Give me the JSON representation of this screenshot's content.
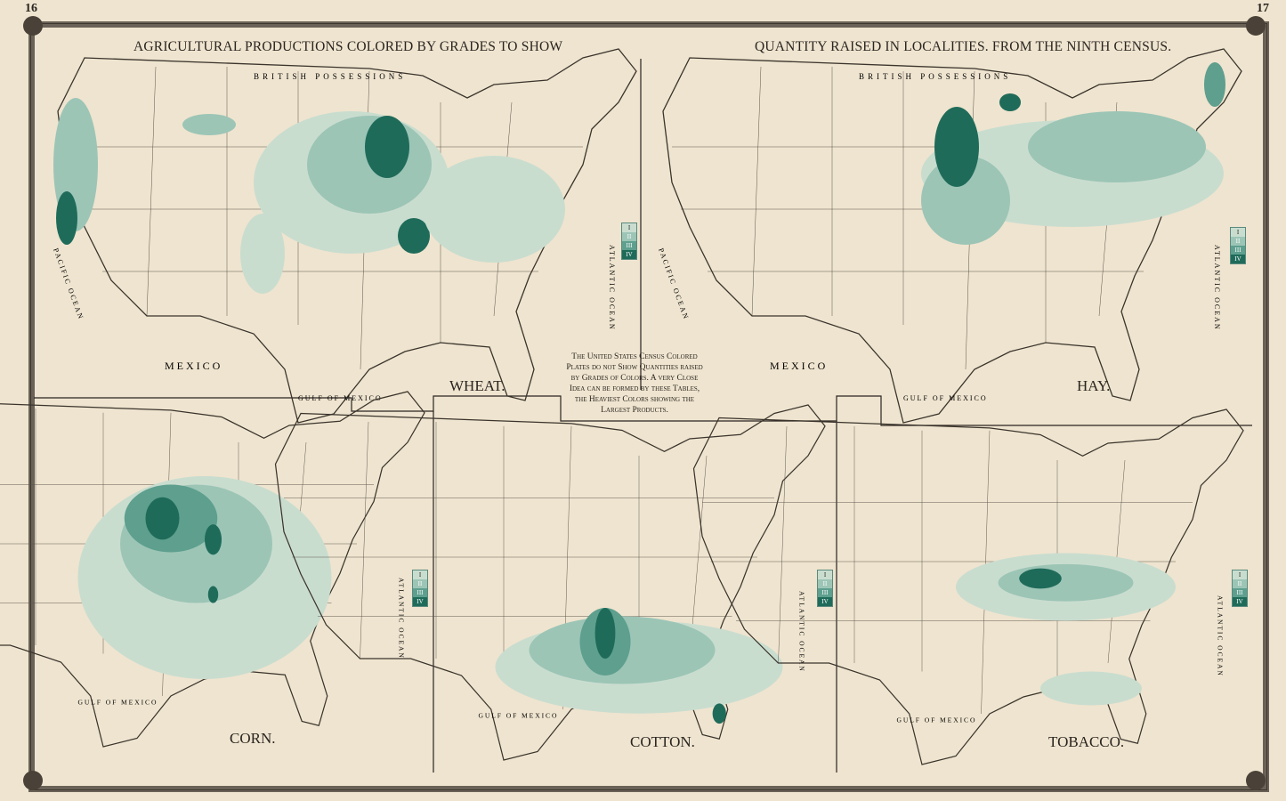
{
  "page_numbers": {
    "left": "16",
    "right": "17"
  },
  "header": {
    "left_title": "AGRICULTURAL PRODUCTIONS COLORED BY GRADES TO SHOW",
    "right_title": "QUANTITY RAISED IN LOCALITIES. FROM THE NINTH CENSUS."
  },
  "note": "The United States Census Colored Plates do not Show Quantities raised by Grades of Colors. A very Close Idea can be formed by these Tables, the Heaviest Colors showing the Largest Products.",
  "maps": [
    {
      "name": "WHEAT.",
      "labels": {
        "north": "BRITISH POSSESSIONS",
        "south": "MEXICO",
        "gulf": "GULF OF MEXICO",
        "east": "ATLANTIC OCEAN",
        "west": "PACIFIC OCEAN"
      }
    },
    {
      "name": "HAY.",
      "labels": {
        "north": "BRITISH POSSESSIONS",
        "south": "MEXICO",
        "gulf": "GULF OF MEXICO",
        "east": "ATLANTIC OCEAN",
        "west": "PACIFIC OCEAN"
      }
    },
    {
      "name": "CORN.",
      "labels": {
        "gulf": "GULF OF MEXICO",
        "east": "ATLANTIC OCEAN"
      }
    },
    {
      "name": "COTTON.",
      "labels": {
        "gulf": "GULF OF MEXICO",
        "east": "ATLANTIC OCEAN"
      }
    },
    {
      "name": "TOBACCO.",
      "labels": {
        "gulf": "GULF OF MEXICO",
        "east": "ATLANTIC OCEAN"
      }
    }
  ],
  "legend_grades": [
    "I",
    "II",
    "III",
    "IV"
  ],
  "colors": {
    "paper": "#efe4cf",
    "grade1": "#c9ddcf",
    "grade2": "#9cc5b6",
    "grade3": "#5e9f8e",
    "grade4": "#1f6b5a",
    "lines": "#3a342c"
  }
}
